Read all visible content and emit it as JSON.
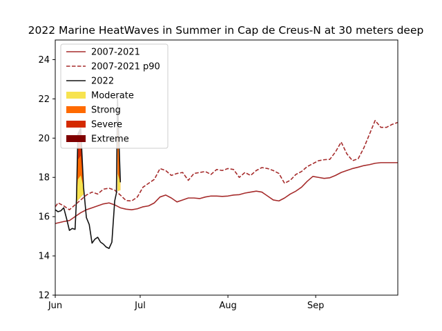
{
  "chart_data": {
    "type": "line",
    "title": "2022 Marine HeatWaves in Summer in Cap de Creus-N at 30 meters deep",
    "xlabel": "",
    "ylabel": "",
    "x_ticks": [
      {
        "label": "Jun",
        "day": 0
      },
      {
        "label": "Jul",
        "day": 30
      },
      {
        "label": "Aug",
        "day": 61
      },
      {
        "label": "Sep",
        "day": 92
      }
    ],
    "xlim": [
      0,
      121
    ],
    "ylim": [
      12,
      25
    ],
    "y_ticks": [
      12,
      14,
      16,
      18,
      20,
      22,
      24
    ],
    "grid": false,
    "legend_position": "top-left",
    "legend": [
      {
        "label": "2007-2021",
        "kind": "line",
        "color": "#a52a2a",
        "dash": false
      },
      {
        "label": "2007-2021 p90",
        "kind": "line",
        "color": "#a52a2a",
        "dash": true
      },
      {
        "label": "2022",
        "kind": "line",
        "color": "#111111",
        "dash": false
      },
      {
        "label": "Moderate",
        "kind": "patch",
        "color": "#f7e350"
      },
      {
        "label": "Strong",
        "kind": "patch",
        "color": "#ff6a00"
      },
      {
        "label": "Severe",
        "kind": "patch",
        "color": "#d42a00"
      },
      {
        "label": "Extreme",
        "kind": "patch",
        "color": "#7f0000"
      }
    ],
    "series": [
      {
        "name": "2007-2021",
        "color": "#a52a2a",
        "style": "solid",
        "x": [
          0,
          3,
          5,
          7,
          9,
          11,
          13,
          15,
          17,
          19,
          21,
          23,
          25,
          27,
          29,
          31,
          33,
          35,
          37,
          39,
          41,
          43,
          45,
          47,
          49,
          51,
          53,
          55,
          57,
          59,
          61,
          63,
          65,
          67,
          69,
          71,
          73,
          75,
          77,
          79,
          81,
          83,
          85,
          87,
          89,
          91,
          93,
          95,
          97,
          99,
          101,
          103,
          105,
          107,
          109,
          111,
          113,
          115,
          117,
          119,
          121
        ],
        "values": [
          15.65,
          15.75,
          15.8,
          16.0,
          16.2,
          16.35,
          16.45,
          16.55,
          16.65,
          16.7,
          16.6,
          16.45,
          16.38,
          16.35,
          16.4,
          16.5,
          16.55,
          16.7,
          17.0,
          17.1,
          16.95,
          16.75,
          16.85,
          16.95,
          16.95,
          16.92,
          17.0,
          17.05,
          17.05,
          17.03,
          17.05,
          17.1,
          17.12,
          17.2,
          17.25,
          17.3,
          17.25,
          17.05,
          16.85,
          16.8,
          16.95,
          17.15,
          17.3,
          17.5,
          17.8,
          18.05,
          18.0,
          17.95,
          17.98,
          18.1,
          18.25,
          18.35,
          18.45,
          18.52,
          18.6,
          18.65,
          18.72,
          18.75,
          18.75,
          18.75,
          18.75
        ]
      },
      {
        "name": "2007-2021 p90",
        "color": "#a52a2a",
        "style": "dashed",
        "x": [
          0,
          1,
          3,
          5,
          7,
          9,
          11,
          13,
          15,
          17,
          19,
          21,
          23,
          25,
          27,
          29,
          31,
          33,
          35,
          37,
          39,
          41,
          43,
          45,
          47,
          49,
          51,
          53,
          55,
          57,
          59,
          61,
          63,
          65,
          67,
          69,
          71,
          73,
          75,
          77,
          79,
          81,
          83,
          85,
          87,
          89,
          91,
          93,
          95,
          97,
          99,
          101,
          103,
          105,
          107,
          109,
          111,
          113,
          115,
          117,
          119,
          121
        ],
        "values": [
          16.5,
          16.7,
          16.55,
          16.35,
          16.6,
          16.85,
          17.1,
          17.25,
          17.15,
          17.4,
          17.45,
          17.35,
          17.1,
          16.82,
          16.8,
          17.0,
          17.5,
          17.7,
          17.9,
          18.45,
          18.35,
          18.1,
          18.2,
          18.25,
          17.85,
          18.2,
          18.25,
          18.3,
          18.15,
          18.4,
          18.35,
          18.45,
          18.4,
          18.0,
          18.25,
          18.1,
          18.35,
          18.5,
          18.45,
          18.35,
          18.2,
          17.7,
          17.85,
          18.15,
          18.3,
          18.55,
          18.7,
          18.85,
          18.9,
          18.92,
          19.3,
          19.8,
          19.2,
          18.85,
          18.95,
          19.5,
          20.2,
          20.9,
          20.55,
          20.55,
          20.7,
          20.8
        ]
      },
      {
        "name": "2022",
        "color": "#111111",
        "style": "solid",
        "x": [
          0,
          1,
          2,
          3,
          4,
          5,
          6,
          7,
          7.5,
          8,
          9,
          10,
          11,
          12,
          13,
          14,
          15,
          16,
          17,
          18,
          19,
          20,
          21,
          21.6,
          22,
          23
        ],
        "values": [
          16.35,
          16.25,
          16.3,
          16.45,
          15.9,
          15.3,
          15.4,
          15.35,
          16.9,
          20.2,
          20.5,
          17.5,
          15.95,
          15.6,
          14.65,
          14.85,
          14.95,
          14.7,
          14.6,
          14.45,
          14.38,
          14.7,
          16.8,
          17.2,
          22.0,
          17.75
        ]
      }
    ],
    "heatwave_events": [
      {
        "x": [
          7.5,
          8,
          9,
          10
        ],
        "lower": [
          16.72,
          16.84,
          17.0,
          17.15
        ],
        "upper": [
          16.9,
          20.2,
          20.5,
          17.5
        ],
        "bands": [
          {
            "category": "Moderate",
            "color": "#f7e350",
            "upper": [
              16.9,
              17.9,
              18.1,
              17.5
            ]
          },
          {
            "category": "Strong",
            "color": "#ff6a00",
            "upper": [
              16.9,
              18.9,
              19.1,
              17.5
            ]
          },
          {
            "category": "Severe",
            "color": "#d42a00",
            "upper": [
              16.9,
              19.9,
              20.1,
              17.5
            ]
          },
          {
            "category": "Extreme",
            "color": "#7f0000",
            "upper": [
              16.9,
              20.2,
              20.5,
              17.5
            ]
          }
        ]
      },
      {
        "x": [
          22,
          23
        ],
        "lower": [
          17.3,
          17.35
        ],
        "upper": [
          22.0,
          17.75
        ],
        "bands": [
          {
            "category": "Moderate",
            "color": "#f7e350",
            "upper": [
              18.2,
              17.75
            ]
          },
          {
            "category": "Strong",
            "color": "#ff6a00",
            "upper": [
              22.0,
              17.75
            ]
          }
        ]
      }
    ]
  }
}
